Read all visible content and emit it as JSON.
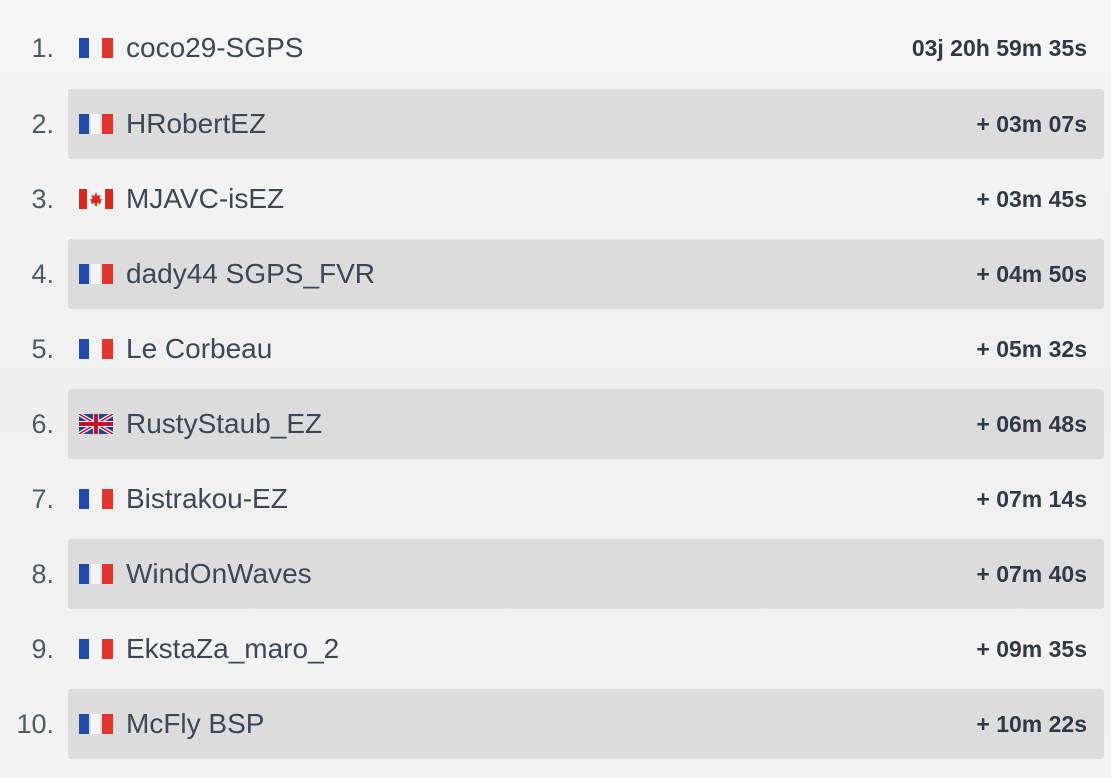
{
  "leaderboard": {
    "rows": [
      {
        "rank": "1.",
        "flag": "france-flag-icon",
        "name": "coco29-SGPS",
        "time": "03j 20h 59m 35s"
      },
      {
        "rank": "2.",
        "flag": "france-flag-icon",
        "name": "HRobertEZ",
        "time": "+ 03m 07s"
      },
      {
        "rank": "3.",
        "flag": "canada-flag-icon",
        "name": "MJAVC-isEZ",
        "time": "+ 03m 45s"
      },
      {
        "rank": "4.",
        "flag": "france-flag-icon",
        "name": "dady44 SGPS_FVR",
        "time": "+ 04m 50s"
      },
      {
        "rank": "5.",
        "flag": "france-flag-icon",
        "name": "Le Corbeau",
        "time": "+ 05m 32s"
      },
      {
        "rank": "6.",
        "flag": "uk-flag-icon",
        "name": "RustyStaub_EZ",
        "time": "+ 06m 48s"
      },
      {
        "rank": "7.",
        "flag": "france-flag-icon",
        "name": "Bistrakou-EZ",
        "time": "+ 07m 14s"
      },
      {
        "rank": "8.",
        "flag": "france-flag-icon",
        "name": "WindOnWaves",
        "time": "+ 07m 40s"
      },
      {
        "rank": "9.",
        "flag": "france-flag-icon",
        "name": "EkstaZa_maro_2",
        "time": "+ 09m 35s"
      },
      {
        "rank": "10.",
        "flag": "france-flag-icon",
        "name": "McFly BSP",
        "time": "+ 10m 22s"
      }
    ]
  },
  "colors": {
    "row_alt_background": "#dcdcdc",
    "france_blue": "#1f4aa8",
    "france_red": "#e0362f",
    "canada_red": "#d52b1e",
    "uk_blue": "#2a3d8f",
    "uk_red": "#c8102e"
  }
}
